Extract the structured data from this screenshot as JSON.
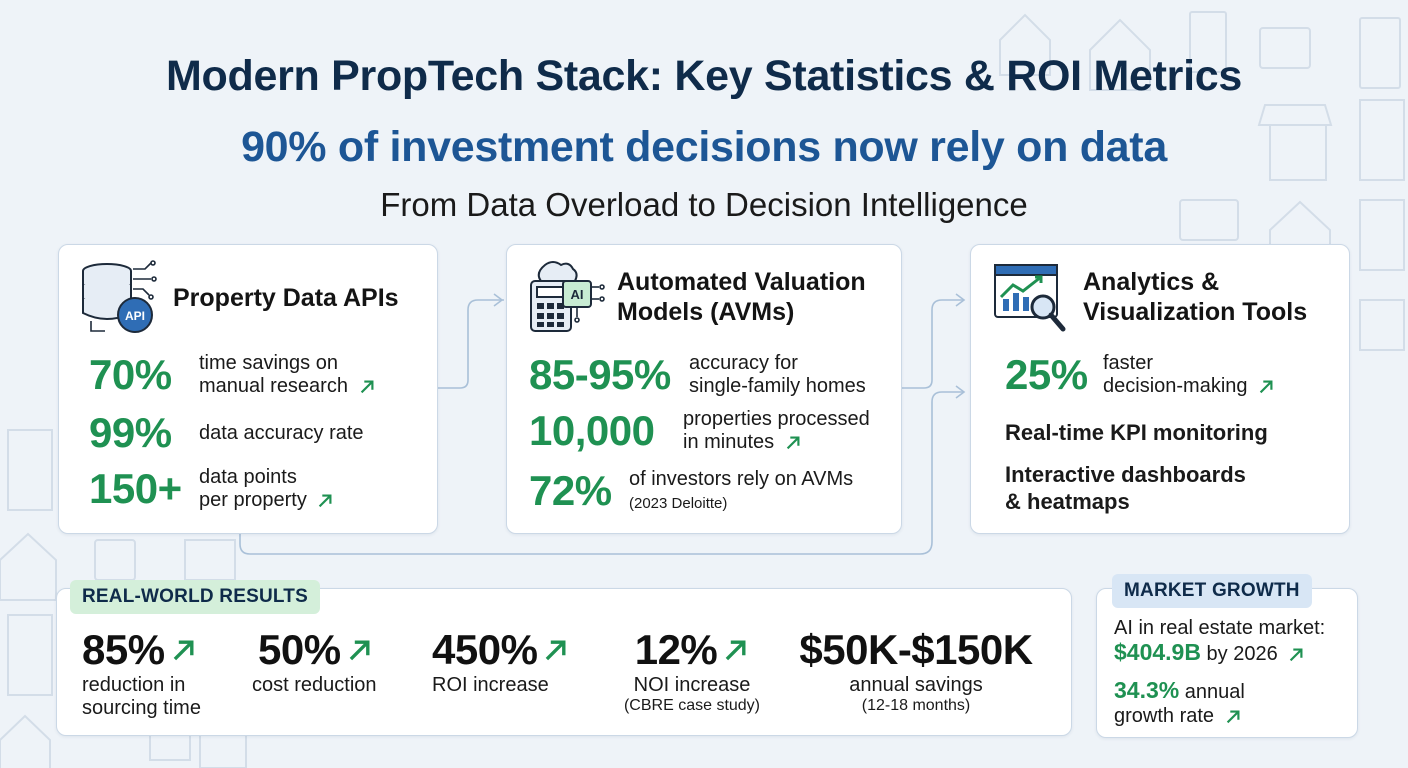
{
  "header": {
    "title": "Modern PropTech Stack: Key Statistics & ROI Metrics",
    "subtitle": "90% of investment decisions now rely on data",
    "tagline": "From Data Overload to Decision Intelligence"
  },
  "cards": {
    "apis": {
      "title": "Property Data APIs",
      "icon_label": "API",
      "stats": [
        {
          "value": "70%",
          "line1": "time savings on",
          "line2": "manual research"
        },
        {
          "value": "99%",
          "line1": "data accuracy rate",
          "line2": ""
        },
        {
          "value": "150+",
          "line1": "data points",
          "line2": "per property"
        }
      ]
    },
    "avms": {
      "title_line1": "Automated Valuation",
      "title_line2": "Models (AVMs)",
      "icon_label": "AI",
      "stats": [
        {
          "value": "85-95%",
          "line1": "accuracy for",
          "line2": "single-family homes"
        },
        {
          "value": "10,000",
          "line1": "properties processed",
          "line2": "in minutes"
        },
        {
          "value": "72%",
          "line1": "of investors rely on AVMs",
          "line2": "(2023 Deloitte)"
        }
      ]
    },
    "analytics": {
      "title_line1": "Analytics &",
      "title_line2": "Visualization Tools",
      "stats": [
        {
          "value": "25%",
          "line1": "faster",
          "line2": "decision-making"
        }
      ],
      "feature1": "Real-time KPI monitoring",
      "feature2_line1": "Interactive dashboards",
      "feature2_line2": "& heatmaps"
    }
  },
  "results": {
    "label": "REAL-WORLD RESULTS",
    "items": [
      {
        "value": "85%",
        "line1": "reduction in",
        "line2": "sourcing time"
      },
      {
        "value": "50%",
        "line1": "cost reduction",
        "line2": ""
      },
      {
        "value": "450%",
        "line1": "ROI increase",
        "line2": ""
      },
      {
        "value": "12%",
        "line1": "NOI increase",
        "line2": "(CBRE case study)"
      },
      {
        "value": "$50K-$150K",
        "line1": "annual savings",
        "line2": "(12-18 months)"
      }
    ]
  },
  "market": {
    "label": "MARKET GROWTH",
    "line1": "AI in real estate market:",
    "value1": "$404.9B",
    "value1_suffix": "by 2026",
    "value2": "34.3%",
    "value2_suffix": "annual",
    "line3": "growth rate"
  },
  "colors": {
    "accent_green": "#1f9152",
    "title_navy": "#0f2b4a",
    "subtitle_blue": "#1d5695",
    "pill_green": "#d4efda",
    "pill_blue": "#d8e6f5"
  },
  "icons": [
    "database-api-icon",
    "ai-calculator-icon",
    "analytics-monitor-icon",
    "trend-arrow-icon"
  ]
}
